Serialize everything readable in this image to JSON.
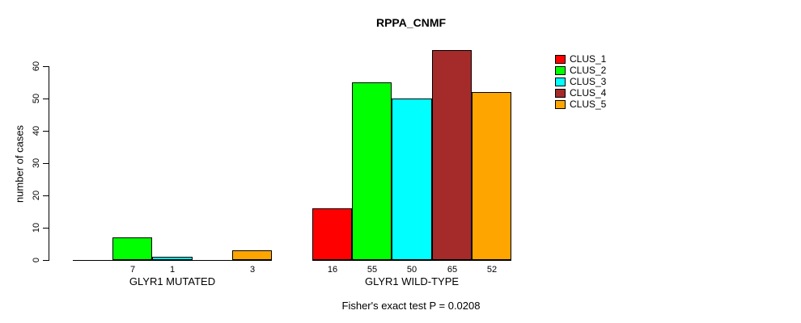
{
  "title": "RPPA_CNMF",
  "chart_data": {
    "type": "bar",
    "title": "RPPA_CNMF",
    "ylabel": "number of cases",
    "xlabel": "",
    "categories": [
      "GLYR1 MUTATED",
      "GLYR1 WILD-TYPE"
    ],
    "series": [
      {
        "name": "CLUS_1",
        "color": "#ff0000",
        "values": [
          0,
          16
        ]
      },
      {
        "name": "CLUS_2",
        "color": "#00ff00",
        "values": [
          7,
          55
        ]
      },
      {
        "name": "CLUS_3",
        "color": "#00ffff",
        "values": [
          1,
          50
        ]
      },
      {
        "name": "CLUS_4",
        "color": "#a52a2a",
        "values": [
          0,
          65
        ]
      },
      {
        "name": "CLUS_5",
        "color": "#ffa500",
        "values": [
          3,
          52
        ]
      }
    ],
    "bar_value_labels": {
      "GLYR1 MUTATED": [
        "",
        "7",
        "1",
        "",
        "3"
      ],
      "GLYR1 WILD-TYPE": [
        "16",
        "55",
        "50",
        "65",
        "52"
      ]
    },
    "yticks": [
      0,
      10,
      20,
      30,
      40,
      50,
      60
    ],
    "ylim": [
      0,
      65
    ],
    "grid": false,
    "legend_position": "right",
    "legend_labels": [
      "CLUS_1",
      "CLUS_2",
      "CLUS_3",
      "CLUS_4",
      "CLUS_5"
    ],
    "annotation": "Fisher's exact test P = 0.0208"
  }
}
